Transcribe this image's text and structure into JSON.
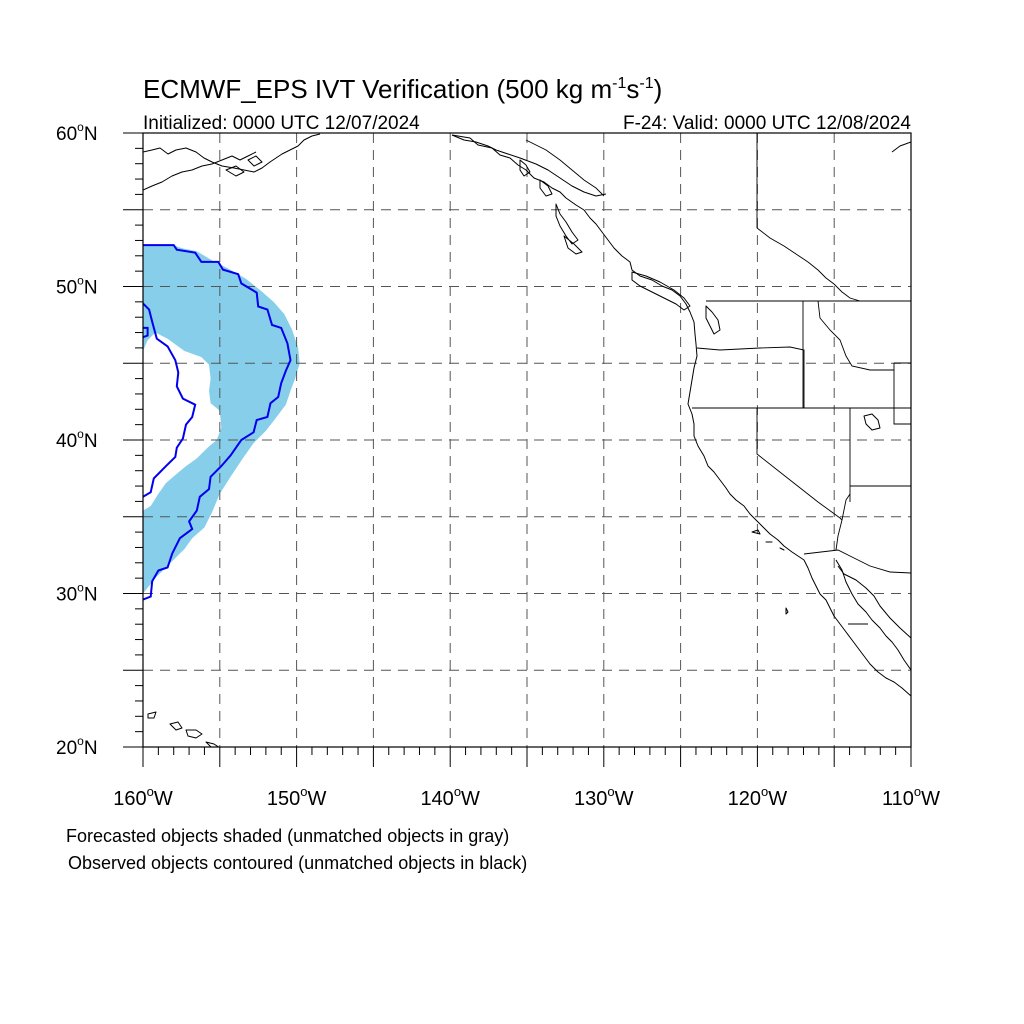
{
  "header": {
    "title_main": "ECMWF_EPS IVT Verification (500 kg m",
    "title_sup1": "-1",
    "title_mid": "s",
    "title_sup2": "-1",
    "title_end": ")",
    "initialized": "Initialized: 0000 UTC 12/07/2024",
    "valid": "F-24: Valid: 0000 UTC 12/08/2024"
  },
  "map": {
    "lon_range": [
      -160,
      -110
    ],
    "lat_range": [
      20,
      60
    ],
    "y_ticks": [
      {
        "value": 60,
        "label": "60",
        "suffix": "N"
      },
      {
        "value": 50,
        "label": "50",
        "suffix": "N"
      },
      {
        "value": 40,
        "label": "40",
        "suffix": "N"
      },
      {
        "value": 30,
        "label": "30",
        "suffix": "N"
      },
      {
        "value": 20,
        "label": "20",
        "suffix": "N"
      }
    ],
    "x_ticks": [
      {
        "value": -160,
        "label": "160",
        "suffix": "W"
      },
      {
        "value": -150,
        "label": "150",
        "suffix": "W"
      },
      {
        "value": -140,
        "label": "140",
        "suffix": "W"
      },
      {
        "value": -130,
        "label": "130",
        "suffix": "W"
      },
      {
        "value": -120,
        "label": "120",
        "suffix": "W"
      },
      {
        "value": -110,
        "label": "110",
        "suffix": "W"
      }
    ],
    "grid_lon": [
      -155,
      -150,
      -145,
      -140,
      -135,
      -130,
      -125,
      -120,
      -115
    ],
    "grid_lat": [
      25,
      30,
      35,
      40,
      45,
      50,
      55
    ],
    "colors": {
      "forecast_fill": "#87ceeb",
      "observed_contour": "#0000ee",
      "grid": "#555555"
    },
    "forecast_object": [
      [
        -160,
        52.7
      ],
      [
        -158,
        52.7
      ],
      [
        -157.5,
        52.5
      ],
      [
        -156.5,
        52.3
      ],
      [
        -155.5,
        51.7
      ],
      [
        -154.5,
        51.2
      ],
      [
        -153.3,
        50.5
      ],
      [
        -152.3,
        49.7
      ],
      [
        -151.5,
        49
      ],
      [
        -150.8,
        48.2
      ],
      [
        -150.3,
        47.2
      ],
      [
        -149.9,
        46
      ],
      [
        -149.8,
        45
      ],
      [
        -150.1,
        44
      ],
      [
        -150.4,
        43.2
      ],
      [
        -150.7,
        42.3
      ],
      [
        -151.3,
        41.5
      ],
      [
        -152,
        40.6
      ],
      [
        -152.8,
        39.8
      ],
      [
        -153.5,
        38.8
      ],
      [
        -154.3,
        37.6
      ],
      [
        -155,
        36.5
      ],
      [
        -155.5,
        35.3
      ],
      [
        -156,
        34.3
      ],
      [
        -156.8,
        33.6
      ],
      [
        -157.3,
        32.9
      ],
      [
        -158.2,
        32
      ],
      [
        -159.2,
        31
      ],
      [
        -160,
        30
      ],
      [
        -160,
        35.4
      ],
      [
        -159.5,
        35.7
      ],
      [
        -159,
        36.5
      ],
      [
        -158.5,
        37.2
      ],
      [
        -157.8,
        37.8
      ],
      [
        -157.2,
        38.3
      ],
      [
        -156.5,
        38.8
      ],
      [
        -155.8,
        39.5
      ],
      [
        -155.2,
        40
      ],
      [
        -154.9,
        40.8
      ],
      [
        -155,
        41.9
      ],
      [
        -155.6,
        42.4
      ],
      [
        -155.7,
        43.2
      ],
      [
        -155.6,
        44
      ],
      [
        -155.7,
        44.9
      ],
      [
        -156.2,
        45.4
      ],
      [
        -157.3,
        45.8
      ],
      [
        -158.4,
        46.6
      ],
      [
        -159.2,
        47
      ],
      [
        -159.7,
        46.5
      ],
      [
        -160,
        45.8
      ]
    ],
    "observed_outer": [
      [
        -160,
        52.7
      ],
      [
        -158,
        52.7
      ],
      [
        -157.8,
        52.4
      ],
      [
        -156.6,
        52.2
      ],
      [
        -156.2,
        51.6
      ],
      [
        -155.1,
        51.6
      ],
      [
        -154.8,
        51.1
      ],
      [
        -153.8,
        50.8
      ],
      [
        -153.6,
        50.2
      ],
      [
        -152.6,
        49.6
      ],
      [
        -152.5,
        48.7
      ],
      [
        -151.9,
        48.5
      ],
      [
        -151.6,
        47.5
      ],
      [
        -151,
        47.3
      ],
      [
        -150.6,
        46.3
      ],
      [
        -150.4,
        45.2
      ],
      [
        -150.7,
        44.5
      ],
      [
        -151,
        43.7
      ],
      [
        -151.2,
        42.8
      ],
      [
        -151.7,
        42.4
      ],
      [
        -151.9,
        41.5
      ],
      [
        -152.6,
        41.3
      ],
      [
        -152.8,
        40.5
      ],
      [
        -153.6,
        40
      ],
      [
        -154.3,
        39
      ],
      [
        -154.9,
        38.3
      ],
      [
        -155.6,
        37.6
      ],
      [
        -155.7,
        36.8
      ],
      [
        -156.3,
        36.3
      ],
      [
        -156.5,
        35.4
      ],
      [
        -157,
        34.7
      ],
      [
        -156.8,
        34.2
      ],
      [
        -157.6,
        33.6
      ],
      [
        -158.1,
        32.6
      ],
      [
        -158.4,
        31.7
      ],
      [
        -159,
        31.5
      ],
      [
        -159.4,
        30.8
      ],
      [
        -159.5,
        29.8
      ],
      [
        -160,
        29.6
      ]
    ],
    "observed_inner": [
      [
        -160,
        36.3
      ],
      [
        -159.5,
        36.6
      ],
      [
        -159.3,
        37.5
      ],
      [
        -158.5,
        38.3
      ],
      [
        -157.9,
        38.9
      ],
      [
        -157.8,
        39.5
      ],
      [
        -157.4,
        40.1
      ],
      [
        -157.2,
        41
      ],
      [
        -156.8,
        41.5
      ],
      [
        -156.6,
        42.3
      ],
      [
        -157.4,
        42.7
      ],
      [
        -157.8,
        43.5
      ],
      [
        -157.7,
        44.4
      ],
      [
        -157.9,
        45.2
      ],
      [
        -158.4,
        46.1
      ],
      [
        -159.1,
        46.6
      ],
      [
        -159.4,
        47.7
      ],
      [
        -159.6,
        48.5
      ],
      [
        -160,
        48.9
      ]
    ],
    "observed_dent": [
      [
        -160,
        47.3
      ],
      [
        -159.7,
        47.3
      ],
      [
        -159.7,
        46.8
      ],
      [
        -160,
        46.7
      ]
    ]
  },
  "notes": {
    "line1": "Forecasted objects shaded (unmatched objects in gray)",
    "line2": "Observed objects contoured (unmatched objects in black)"
  }
}
